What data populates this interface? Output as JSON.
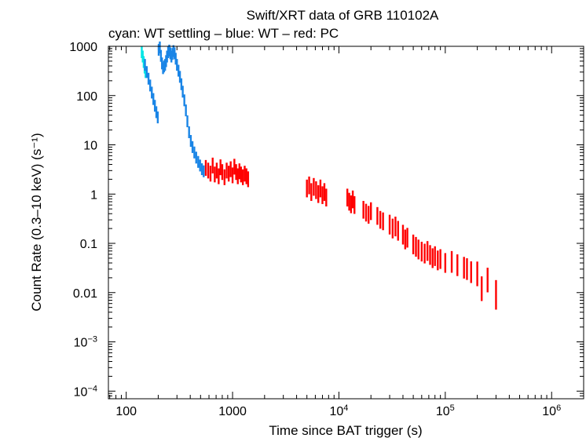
{
  "chart_data": {
    "type": "scatter",
    "title": "Swift/XRT data of GRB 110102A",
    "subtitle": "cyan: WT settling – blue: WT – red: PC",
    "xlabel": "Time since BAT trigger (s)",
    "ylabel": "Count Rate (0.3–10 keV) (s⁻¹)",
    "xscale": "log",
    "yscale": "log",
    "xlim": [
      68,
      2000000
    ],
    "ylim": [
      7e-05,
      1000
    ],
    "xticks": [
      {
        "value": 100,
        "label": "100"
      },
      {
        "value": 1000,
        "label": "1000"
      },
      {
        "value": 10000,
        "base": "10",
        "exp": "4"
      },
      {
        "value": 100000,
        "base": "10",
        "exp": "5"
      },
      {
        "value": 1000000,
        "base": "10",
        "exp": "6"
      }
    ],
    "yticks": [
      {
        "value": 1000,
        "label": "1000"
      },
      {
        "value": 100,
        "label": "100"
      },
      {
        "value": 10,
        "label": "10"
      },
      {
        "value": 1,
        "label": "1"
      },
      {
        "value": 0.1,
        "label": "0.1"
      },
      {
        "value": 0.01,
        "label": "0.01"
      },
      {
        "value": 0.001,
        "base": "10",
        "exp": "−3"
      },
      {
        "value": 0.0001,
        "base": "10",
        "exp": "−4"
      }
    ],
    "grid": false,
    "series": [
      {
        "color": "#00e5e5",
        "points": [
          [
            140,
            760,
            0.12
          ],
          [
            143,
            620,
            0.12
          ],
          [
            146,
            480,
            0.12
          ],
          [
            149,
            370,
            0.12
          ],
          [
            152,
            300,
            0.12
          ]
        ]
      },
      {
        "color": "#1a85e6",
        "points": [
          [
            150,
            420,
            0.12
          ],
          [
            156,
            300,
            0.12
          ],
          [
            162,
            220,
            0.12
          ],
          [
            168,
            160,
            0.12
          ],
          [
            174,
            115,
            0.12
          ],
          [
            180,
            85,
            0.12
          ],
          [
            186,
            62,
            0.12
          ],
          [
            192,
            46,
            0.12
          ],
          [
            198,
            36,
            0.12
          ],
          [
            202,
            850,
            0.12
          ],
          [
            207,
            950,
            0.12
          ],
          [
            212,
            640,
            0.12
          ],
          [
            217,
            450,
            0.12
          ],
          [
            222,
            360,
            0.12
          ],
          [
            227,
            390,
            0.12
          ],
          [
            232,
            420,
            0.12
          ],
          [
            237,
            500,
            0.12
          ],
          [
            242,
            620,
            0.12
          ],
          [
            248,
            760,
            0.12
          ],
          [
            254,
            820,
            0.12
          ],
          [
            260,
            720,
            0.12
          ],
          [
            266,
            620,
            0.12
          ],
          [
            272,
            700,
            0.12
          ],
          [
            278,
            800,
            0.12
          ],
          [
            285,
            720,
            0.12
          ],
          [
            292,
            560,
            0.12
          ],
          [
            300,
            420,
            0.12
          ],
          [
            310,
            320,
            0.12
          ],
          [
            320,
            240,
            0.12
          ],
          [
            330,
            170,
            0.12
          ],
          [
            340,
            120,
            0.12
          ],
          [
            352,
            80,
            0.12
          ],
          [
            364,
            50,
            0.12
          ],
          [
            376,
            30,
            0.12
          ],
          [
            390,
            18,
            0.12
          ],
          [
            405,
            12,
            0.12
          ],
          [
            420,
            9,
            0.12
          ],
          [
            437,
            7,
            0.12
          ],
          [
            455,
            5.5,
            0.12
          ],
          [
            475,
            4.5,
            0.12
          ],
          [
            495,
            3.8,
            0.12
          ],
          [
            515,
            3.2,
            0.12
          ],
          [
            535,
            2.9,
            0.12
          ]
        ]
      },
      {
        "color": "#ff0000",
        "points": [
          [
            560,
            3.4,
            0.16
          ],
          [
            590,
            3.0,
            0.16
          ],
          [
            620,
            2.6,
            0.16
          ],
          [
            650,
            3.8,
            0.16
          ],
          [
            680,
            2.5,
            0.16
          ],
          [
            710,
            3.0,
            0.16
          ],
          [
            740,
            2.3,
            0.16
          ],
          [
            770,
            3.5,
            0.16
          ],
          [
            800,
            2.8,
            0.16
          ],
          [
            840,
            2.2,
            0.16
          ],
          [
            880,
            3.0,
            0.16
          ],
          [
            920,
            2.6,
            0.16
          ],
          [
            960,
            3.2,
            0.16
          ],
          [
            1000,
            2.4,
            0.16
          ],
          [
            1040,
            3.6,
            0.16
          ],
          [
            1080,
            2.8,
            0.16
          ],
          [
            1120,
            2.3,
            0.16
          ],
          [
            1160,
            2.9,
            0.16
          ],
          [
            1200,
            2.5,
            0.16
          ],
          [
            1250,
            2.2,
            0.16
          ],
          [
            1300,
            2.6,
            0.16
          ],
          [
            1350,
            2.3,
            0.16
          ],
          [
            1400,
            2.0,
            0.16
          ],
          [
            5000,
            1.3,
            0.18
          ],
          [
            5250,
            1.5,
            0.18
          ],
          [
            5500,
            1.1,
            0.18
          ],
          [
            5800,
            1.4,
            0.18
          ],
          [
            6100,
            1.2,
            0.18
          ],
          [
            6400,
            1.0,
            0.18
          ],
          [
            6700,
            1.3,
            0.18
          ],
          [
            7000,
            0.95,
            0.18
          ],
          [
            7300,
            1.1,
            0.18
          ],
          [
            7600,
            0.85,
            0.18
          ],
          [
            12000,
            0.85,
            0.18
          ],
          [
            12500,
            0.7,
            0.18
          ],
          [
            13000,
            0.62,
            0.18
          ],
          [
            13500,
            0.78,
            0.18
          ],
          [
            14000,
            0.6,
            0.18
          ],
          [
            17000,
            0.48,
            0.18
          ],
          [
            18000,
            0.42,
            0.18
          ],
          [
            19000,
            0.38,
            0.18
          ],
          [
            20000,
            0.45,
            0.18
          ],
          [
            23000,
            0.36,
            0.18
          ],
          [
            24500,
            0.3,
            0.18
          ],
          [
            26000,
            0.28,
            0.18
          ],
          [
            30000,
            0.24,
            0.2
          ],
          [
            32000,
            0.2,
            0.2
          ],
          [
            34000,
            0.22,
            0.2
          ],
          [
            36000,
            0.18,
            0.2
          ],
          [
            40000,
            0.15,
            0.2
          ],
          [
            42000,
            0.12,
            0.2
          ],
          [
            44000,
            0.13,
            0.2
          ],
          [
            50000,
            0.095,
            0.2
          ],
          [
            53000,
            0.085,
            0.2
          ],
          [
            56000,
            0.075,
            0.2
          ],
          [
            60000,
            0.068,
            0.2
          ],
          [
            64000,
            0.062,
            0.2
          ],
          [
            68000,
            0.07,
            0.2
          ],
          [
            72000,
            0.058,
            0.2
          ],
          [
            76000,
            0.05,
            0.2
          ],
          [
            80000,
            0.055,
            0.2
          ],
          [
            85000,
            0.045,
            0.2
          ],
          [
            90000,
            0.048,
            0.2
          ],
          [
            100000,
            0.04,
            0.2
          ],
          [
            115000,
            0.042,
            0.22
          ],
          [
            130000,
            0.036,
            0.22
          ],
          [
            150000,
            0.032,
            0.22
          ],
          [
            160000,
            0.03,
            0.22
          ],
          [
            175000,
            0.026,
            0.22
          ],
          [
            200000,
            0.024,
            0.25
          ],
          [
            220000,
            0.012,
            0.25
          ],
          [
            250000,
            0.018,
            0.25
          ],
          [
            300000,
            0.009,
            0.3
          ]
        ]
      }
    ]
  }
}
